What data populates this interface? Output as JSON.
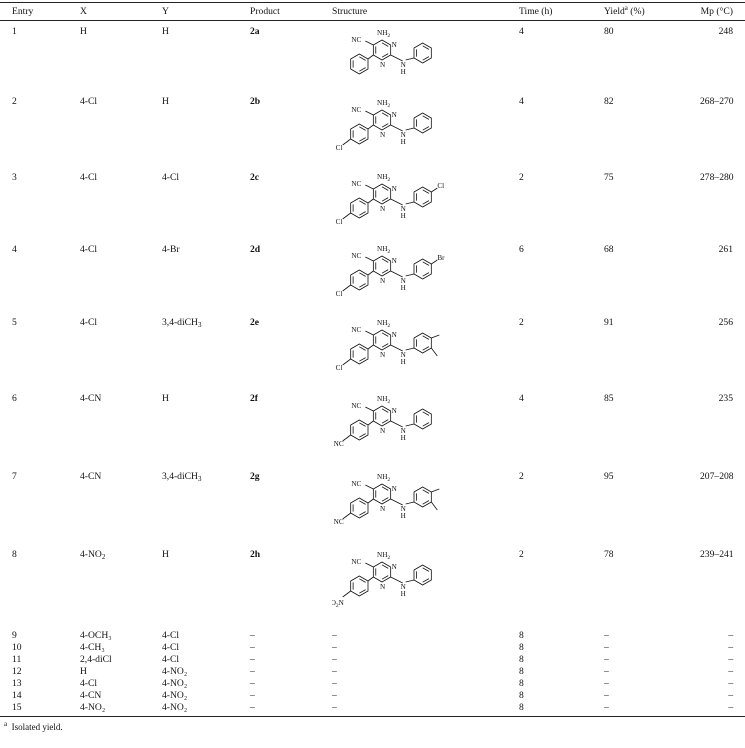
{
  "headers": {
    "entry": "Entry",
    "x": "X",
    "y": "Y",
    "product": "Product",
    "structure": "Structure",
    "time": "Time (h)",
    "yield": "Yield",
    "yield_sup": "a",
    "yield_unit": " (%)",
    "mp": "Mp (°C)"
  },
  "rows": [
    {
      "entry": "1",
      "x": "H",
      "y": "H",
      "product": "2a",
      "time": "4",
      "yield": "80",
      "mp": "248"
    },
    {
      "entry": "2",
      "x": "4-Cl",
      "y": "H",
      "product": "2b",
      "time": "4",
      "yield": "82",
      "mp": "268–270"
    },
    {
      "entry": "3",
      "x": "4-Cl",
      "y": "4-Cl",
      "product": "2c",
      "time": "2",
      "yield": "75",
      "mp": "278–280"
    },
    {
      "entry": "4",
      "x": "4-Cl",
      "y": "4-Br",
      "product": "2d",
      "time": "6",
      "yield": "68",
      "mp": "261"
    },
    {
      "entry": "5",
      "x": "4-Cl",
      "y_main": "3,4-diCH",
      "y_sub": "3",
      "product": "2e",
      "time": "2",
      "yield": "91",
      "mp": "256"
    },
    {
      "entry": "6",
      "x": "4-CN",
      "y": "H",
      "product": "2f",
      "time": "4",
      "yield": "85",
      "mp": "235"
    },
    {
      "entry": "7",
      "x": "4-CN",
      "y_main": "3,4-diCH",
      "y_sub": "3",
      "product": "2g",
      "time": "2",
      "yield": "95",
      "mp": "207–208"
    },
    {
      "entry": "8",
      "x_main": "4-NO",
      "x_sub": "2",
      "y": "H",
      "product": "2h",
      "time": "2",
      "yield": "78",
      "mp": "239–241"
    }
  ],
  "minor_rows": [
    {
      "entry": "9",
      "x": "4-OCH₃",
      "y": "4-Cl",
      "product": "–",
      "structure": "–",
      "time": "8",
      "yield": "–",
      "mp": "–"
    },
    {
      "entry": "10",
      "x": "4-CH₃",
      "y": "4-Cl",
      "product": "–",
      "structure": "–",
      "time": "8",
      "yield": "–",
      "mp": "–"
    },
    {
      "entry": "11",
      "x": "2,4-diCl",
      "y": "4-Cl",
      "product": "–",
      "structure": "–",
      "time": "8",
      "yield": "–",
      "mp": "–"
    },
    {
      "entry": "12",
      "x": "H",
      "y": "4-NO₂",
      "product": "–",
      "structure": "–",
      "time": "8",
      "yield": "–",
      "mp": "–"
    },
    {
      "entry": "13",
      "x": "4-Cl",
      "y": "4-NO₂",
      "product": "–",
      "structure": "–",
      "time": "8",
      "yield": "–",
      "mp": "–"
    },
    {
      "entry": "14",
      "x": "4-CN",
      "y": "4-NO₂",
      "product": "–",
      "structure": "–",
      "time": "8",
      "yield": "–",
      "mp": "–"
    },
    {
      "entry": "15",
      "x": "4-NO₂",
      "y": "4-NO₂",
      "product": "–",
      "structure": "–",
      "time": "8",
      "yield": "–",
      "mp": "–"
    }
  ],
  "structure_labels": {
    "nh2": "NH",
    "nh2_sub": "2",
    "nc": "NC",
    "n": "N",
    "h": "H",
    "cl": "Cl",
    "br": "Br",
    "o2n": "O",
    "o2n_tail": "N"
  },
  "footnote": {
    "mark": "a",
    "text": "Isolated yield."
  }
}
